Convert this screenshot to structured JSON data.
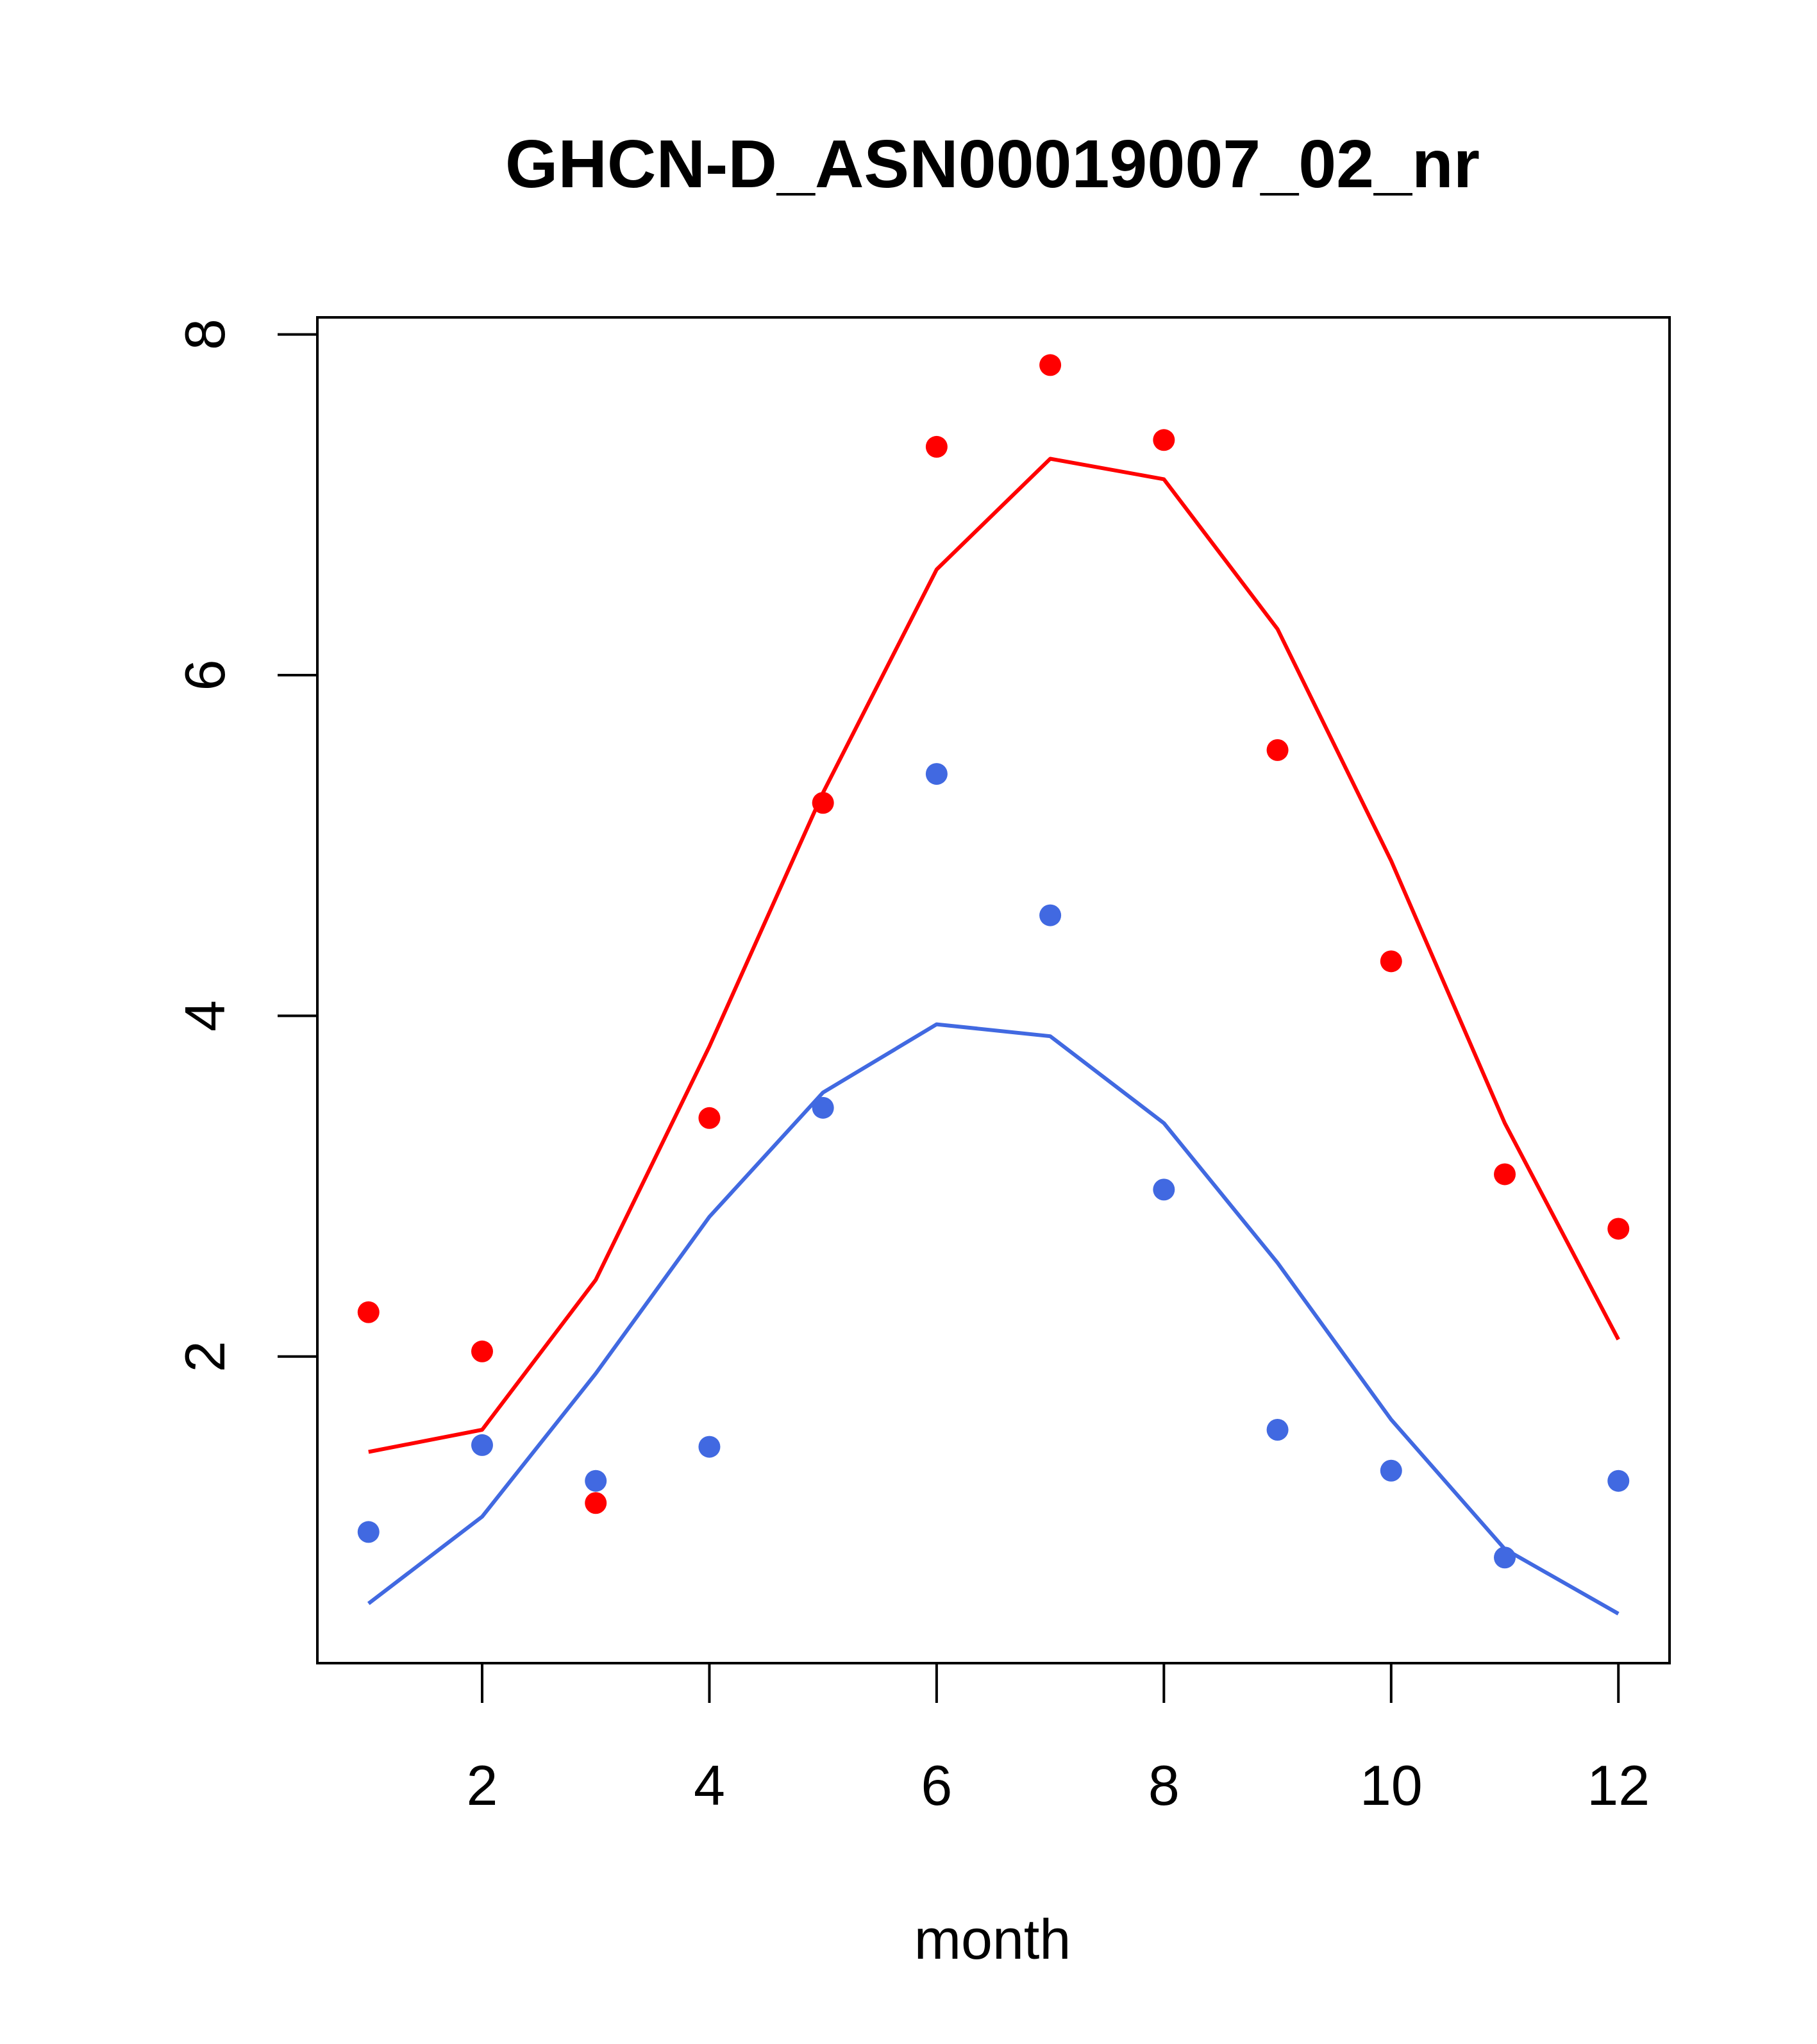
{
  "chart_data": {
    "type": "scatter",
    "title": "GHCN-D_ASN00019007_02_nr",
    "xlabel": "month",
    "ylabel": "",
    "xlim": [
      0.55,
      12.45
    ],
    "ylim": [
      0.2,
      8.1
    ],
    "xticks": [
      2,
      4,
      6,
      8,
      10,
      12
    ],
    "yticks": [
      2,
      4,
      6,
      8
    ],
    "grid": false,
    "legend": "none",
    "x": [
      1,
      2,
      3,
      4,
      5,
      6,
      7,
      8,
      9,
      10,
      11,
      12
    ],
    "series": [
      {
        "color": "#ff0000",
        "points": [
          2.26,
          2.03,
          1.14,
          3.4,
          5.25,
          7.34,
          7.82,
          7.38,
          5.56,
          4.32,
          3.07,
          2.75
        ],
        "line": [
          1.44,
          1.57,
          2.45,
          3.82,
          5.31,
          6.62,
          7.27,
          7.15,
          6.27,
          4.91,
          3.37,
          2.1
        ]
      },
      {
        "color": "#4169e1",
        "points": [
          0.97,
          1.48,
          1.27,
          1.47,
          3.46,
          5.42,
          4.59,
          2.98,
          1.57,
          1.33,
          0.82,
          1.27
        ],
        "line": [
          0.55,
          1.06,
          1.9,
          2.82,
          3.55,
          3.95,
          3.88,
          3.37,
          2.55,
          1.63,
          0.87,
          0.49
        ]
      }
    ]
  }
}
